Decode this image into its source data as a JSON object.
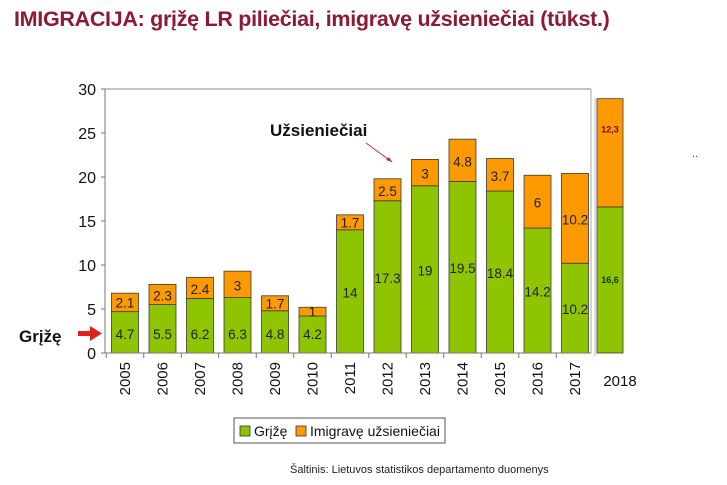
{
  "title": "IMIGRACIJA:  grįžę LR piliečiai, imigravę užsieniečiai (tūkst.)",
  "source": "Šaltinis: Lietuvos statistikos departamento duomenys",
  "stray_mark": "..",
  "colors": {
    "title": "#8b1a32",
    "returned": "#8fc400",
    "foreigners": "#ff9900",
    "arrow": "#e02020"
  },
  "annotations": {
    "foreigners_label": "Užsieniečiai",
    "returned_label": "Grįžę"
  },
  "chart_data": {
    "type": "bar",
    "stacked": true,
    "title": "IMIGRACIJA:  grįžę LR piliečiai, imigravę užsieniečiai (tūkst.)",
    "xlabel": "",
    "ylabel": "",
    "ylim": [
      0,
      30
    ],
    "yticks": [
      0,
      5,
      10,
      15,
      20,
      25,
      30
    ],
    "grid": false,
    "legend_position": "bottom",
    "categories": [
      "2005",
      "2006",
      "2007",
      "2008",
      "2009",
      "2010",
      "2011",
      "2012",
      "2013",
      "2014",
      "2015",
      "2016",
      "2017",
      "2018"
    ],
    "series": [
      {
        "name": "Grįžę",
        "color": "#8fc400",
        "values": [
          4.7,
          5.5,
          6.2,
          6.3,
          4.8,
          4.2,
          14,
          17.3,
          19,
          19.5,
          18.4,
          14.2,
          10.2,
          16.6
        ],
        "labels": [
          "4.7",
          "5.5",
          "6.2",
          "6.3",
          "4.8",
          "4.2",
          "14",
          "17.3",
          "19",
          "19.5",
          "18.4",
          "14.2",
          "10.2",
          "16,6"
        ]
      },
      {
        "name": "Imigravę užsieniečiai",
        "color": "#ff9900",
        "values": [
          2.1,
          2.3,
          2.4,
          3,
          1.7,
          1,
          1.7,
          2.5,
          3,
          4.8,
          3.7,
          6,
          10.2,
          12.3
        ],
        "labels": [
          "2.1",
          "2.3",
          "2.4",
          "3",
          "1.7",
          "1",
          "1.7",
          "2.5",
          "3",
          "4.8",
          "3.7",
          "6",
          "10.2",
          "12,3"
        ]
      }
    ]
  }
}
